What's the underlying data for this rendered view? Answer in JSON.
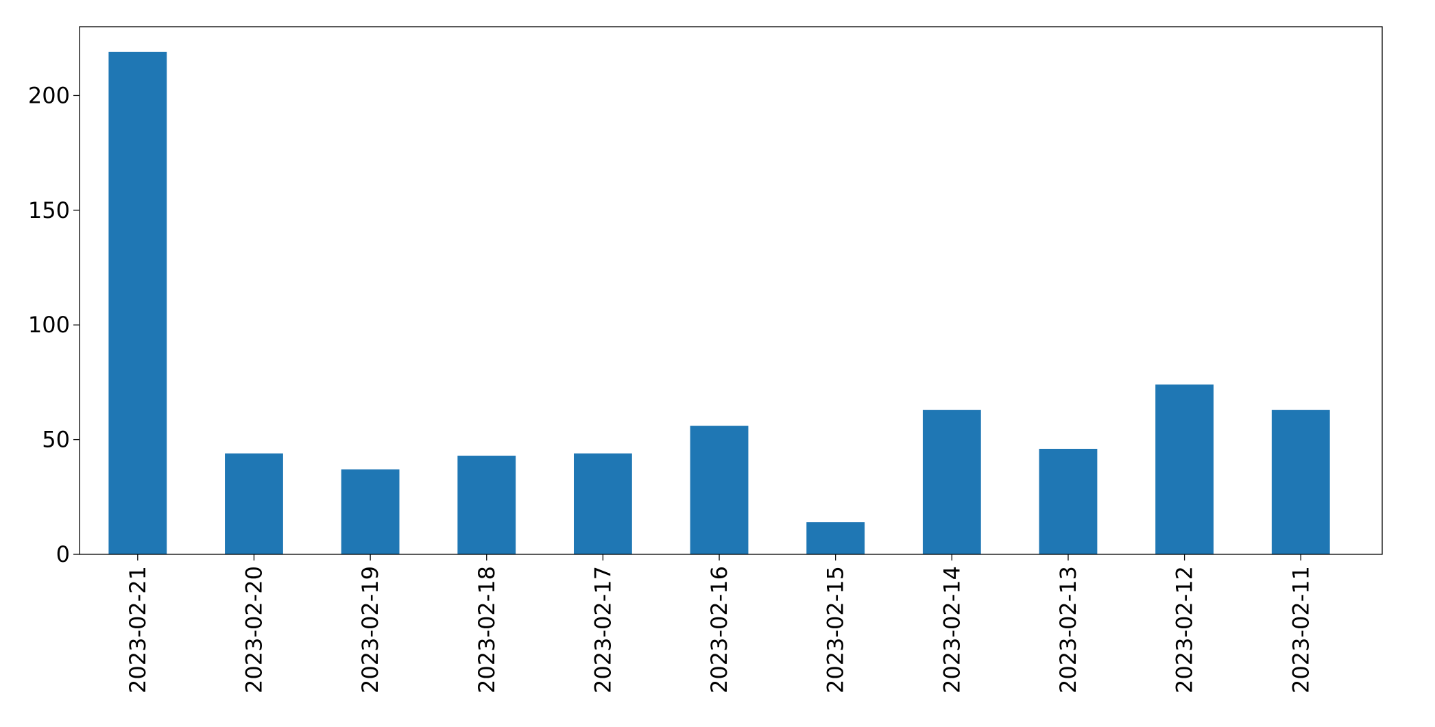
{
  "chart_data": {
    "type": "bar",
    "categories": [
      "2023-02-21",
      "2023-02-20",
      "2023-02-19",
      "2023-02-18",
      "2023-02-17",
      "2023-02-16",
      "2023-02-15",
      "2023-02-14",
      "2023-02-13",
      "2023-02-12",
      "2023-02-11"
    ],
    "values": [
      219,
      44,
      37,
      43,
      44,
      56,
      14,
      63,
      46,
      74,
      63
    ],
    "color": "#1f77b4",
    "ylim": [
      0,
      230
    ],
    "yticks": [
      0,
      50,
      100,
      150,
      200
    ],
    "grid": false
  }
}
